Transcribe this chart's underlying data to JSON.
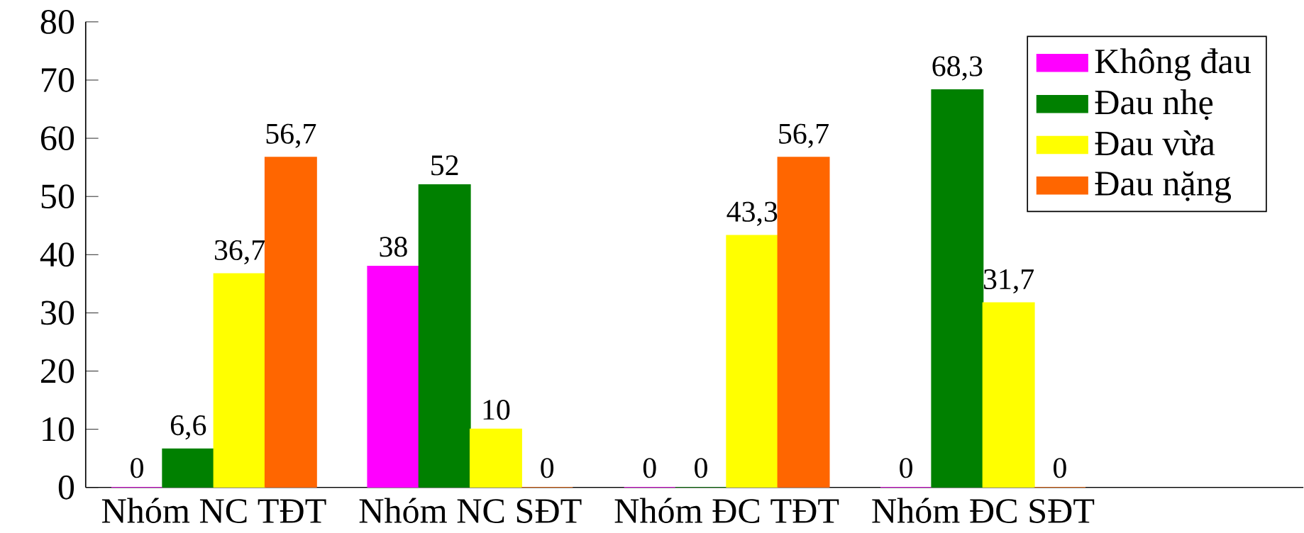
{
  "chart_data": {
    "type": "bar",
    "categories": [
      "Nhóm NC TĐT",
      "Nhóm NC SĐT",
      "Nhóm ĐC TĐT",
      "Nhóm ĐC SĐT"
    ],
    "series": [
      {
        "name": "Không đau",
        "color": "#ff00ff",
        "values": [
          0,
          38,
          0,
          0
        ],
        "value_labels": [
          "0",
          "38",
          "0",
          "0"
        ]
      },
      {
        "name": "Đau nhẹ",
        "color": "#008000",
        "values": [
          6.6,
          52,
          0,
          68.3
        ],
        "value_labels": [
          "6,6",
          "52",
          "0",
          "68,3"
        ]
      },
      {
        "name": "Đau vừa",
        "color": "#ffff00",
        "values": [
          36.7,
          10,
          43.3,
          31.7
        ],
        "value_labels": [
          "36,7",
          "10",
          "43,3",
          "31,7"
        ]
      },
      {
        "name": "Đau nặng",
        "color": "#ff6600",
        "values": [
          56.7,
          0,
          56.7,
          0
        ],
        "value_labels": [
          "56,7",
          "0",
          "56,7",
          "0"
        ]
      }
    ],
    "ylim": [
      0,
      80
    ],
    "yticks": [
      0,
      10,
      20,
      30,
      40,
      50,
      60,
      70,
      80
    ],
    "legend": "top right"
  }
}
